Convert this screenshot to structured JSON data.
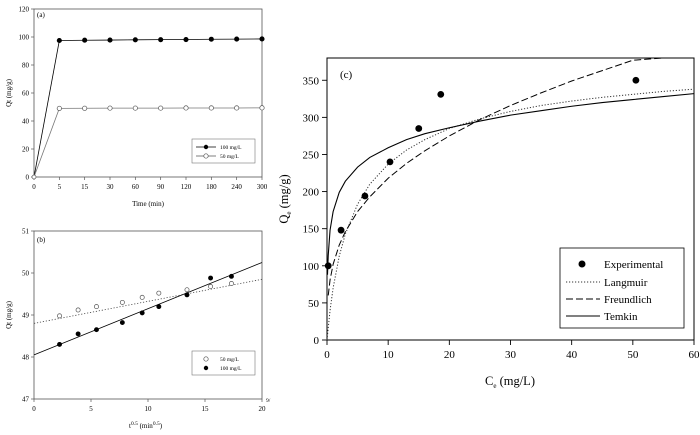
{
  "chart_data": [
    {
      "type": "line",
      "panel_label": "(a)",
      "xlabel": "Time (min)",
      "ylabel": "Qt (mg/g)",
      "categories": [
        "0",
        "5",
        "15",
        "30",
        "60",
        "90",
        "120",
        "180",
        "240",
        "300"
      ],
      "yticks": [
        "0",
        "20",
        "40",
        "60",
        "80",
        "100",
        "120"
      ],
      "ylim": [
        0,
        120
      ],
      "series": [
        {
          "name": "100 mg/L",
          "marker": "filled",
          "values": [
            0,
            97.5,
            97.7,
            97.8,
            98.0,
            98.1,
            98.2,
            98.4,
            98.5,
            98.6
          ]
        },
        {
          "name": "50 mg/L",
          "marker": "open",
          "values": [
            0,
            49.0,
            49.1,
            49.2,
            49.2,
            49.2,
            49.3,
            49.3,
            49.3,
            49.4
          ]
        }
      ],
      "legend": "bottom-right"
    },
    {
      "type": "scatter",
      "panel_label": "(b)",
      "xlabel_main": "t",
      "xlabel_sup1": "0.5",
      "xlabel_rest": " (min",
      "xlabel_sup2": "0.5",
      "xlabel_end": ")",
      "ylabel": "Qt (mg/g)",
      "xticks": [
        "0",
        "5",
        "10",
        "15",
        "20"
      ],
      "yticks": [
        "47",
        "48",
        "49",
        "50",
        "51"
      ],
      "xlim": [
        0,
        20
      ],
      "ylim": [
        47,
        51
      ],
      "right_axis_marker": "9/",
      "series": [
        {
          "name": "50 mg/L",
          "marker": "open",
          "x": [
            2.24,
            3.87,
            5.48,
            7.75,
            9.49,
            10.95,
            13.42,
            15.49,
            17.32
          ],
          "y": [
            48.98,
            49.12,
            49.2,
            49.3,
            49.42,
            49.52,
            49.6,
            49.68,
            49.75
          ],
          "fit": {
            "style": "dotted",
            "x": [
              0,
              20
            ],
            "y": [
              48.8,
              49.85
            ]
          }
        },
        {
          "name": "100 mg/L",
          "marker": "filled",
          "x": [
            2.24,
            3.87,
            5.48,
            7.75,
            9.49,
            10.95,
            13.42,
            15.49,
            17.32
          ],
          "y": [
            48.3,
            48.55,
            48.65,
            48.82,
            49.05,
            49.2,
            49.48,
            49.88,
            49.92
          ],
          "fit": {
            "style": "solid",
            "x": [
              0,
              20
            ],
            "y": [
              48.05,
              50.25
            ]
          }
        }
      ],
      "legend": "bottom-right"
    },
    {
      "type": "scatter",
      "panel_label": "(c)",
      "xlabel_main": "C",
      "xlabel_sub": "e",
      "xlabel_rest": " (mg/L)",
      "ylabel_main": "Q",
      "ylabel_sub": "e",
      "ylabel_rest": " (mg/g)",
      "xticks": [
        "0",
        "10",
        "20",
        "30",
        "40",
        "50",
        "60"
      ],
      "yticks": [
        "0",
        "50",
        "100",
        "150",
        "200",
        "250",
        "300",
        "350"
      ],
      "xlim": [
        0,
        60
      ],
      "ylim": [
        0,
        380
      ],
      "series": [
        {
          "name": "Experimental",
          "marker": "filled",
          "x": [
            0.2,
            2.3,
            6.2,
            10.3,
            15.0,
            18.6,
            50.5
          ],
          "y": [
            100,
            148,
            194,
            240,
            285,
            331,
            350
          ]
        },
        {
          "name": "Langmuir",
          "style": "dotted",
          "x": [
            0,
            0.5,
            1,
            2,
            3,
            5,
            7,
            10,
            13,
            16,
            20,
            25,
            30,
            35,
            40,
            45,
            50,
            55,
            60
          ],
          "y": [
            0,
            40,
            70,
            113,
            143,
            183,
            210,
            237,
            256,
            270,
            285,
            298,
            308,
            316,
            322,
            327,
            331,
            335,
            338
          ]
        },
        {
          "name": "Freundlich",
          "style": "dashed",
          "x": [
            0.2,
            0.5,
            1,
            2,
            3,
            5,
            7,
            10,
            13,
            16,
            20,
            25,
            30,
            35,
            40,
            45,
            50,
            55,
            58.5
          ],
          "y": [
            60,
            81,
            102,
            128,
            146,
            173,
            193,
            218,
            238,
            255,
            275,
            297,
            316,
            333,
            349,
            363,
            377,
            389,
            396
          ]
        },
        {
          "name": "Temkin",
          "style": "solid",
          "x": [
            0.08,
            0.2,
            0.5,
            1,
            2,
            3,
            5,
            7,
            10,
            13,
            16,
            20,
            25,
            30,
            35,
            40,
            45,
            50,
            55,
            60
          ],
          "y": [
            88,
            114,
            148,
            173,
            199,
            214,
            233,
            246,
            259,
            270,
            278,
            286,
            295,
            303,
            309,
            315,
            320,
            324,
            328,
            332
          ]
        }
      ],
      "legend": "bottom-right"
    }
  ]
}
